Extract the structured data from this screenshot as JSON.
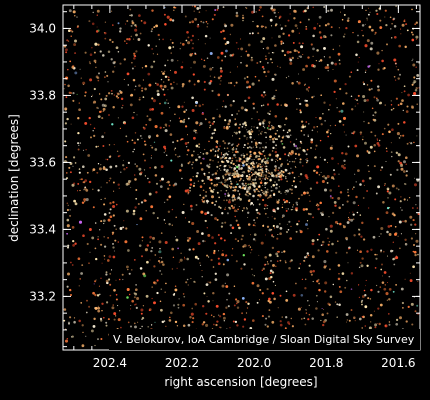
{
  "chart_data": {
    "type": "scatter",
    "title": "",
    "xlabel": "right ascension [degrees]",
    "ylabel": "declination [degrees]",
    "xlim": [
      202.53,
      201.54
    ],
    "ylim": [
      33.04,
      34.07
    ],
    "x_ticks": [
      202.4,
      202.2,
      202.0,
      201.8,
      201.6
    ],
    "x_tick_labels": [
      "202.4",
      "202.2",
      "202.0",
      "201.8",
      "201.6"
    ],
    "y_ticks": [
      33.2,
      33.4,
      33.6,
      33.8,
      34.0
    ],
    "y_tick_labels": [
      "33.2",
      "33.4",
      "33.6",
      "33.8",
      "34.0"
    ],
    "background": "#000000",
    "axis_color": "#ffffff",
    "credit": "V. Belokurov, IoA Cambridge / Sloan Digital Sky Survey",
    "overdensity_center": {
      "ra": 202.01,
      "dec": 33.58
    },
    "star_colors": [
      "#ff7a3a",
      "#ffb56b",
      "#ffe7b0",
      "#fff4dc",
      "#ff4f2e",
      "#e8a060",
      "#8fb8ff",
      "#6fe3c8",
      "#d36bff",
      "#7cff6a"
    ]
  }
}
